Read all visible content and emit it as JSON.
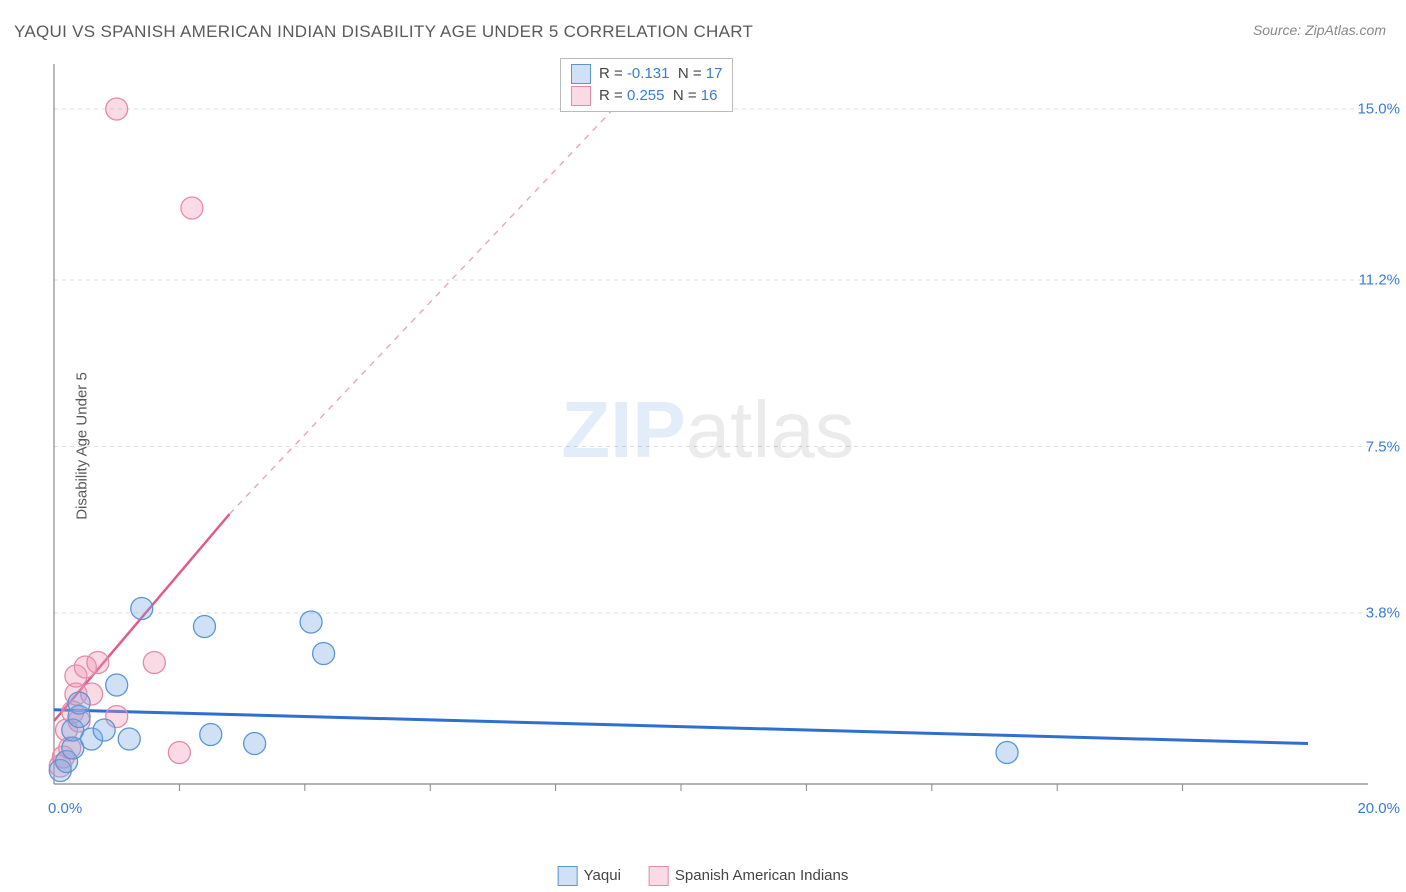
{
  "title": "YAQUI VS SPANISH AMERICAN INDIAN DISABILITY AGE UNDER 5 CORRELATION CHART",
  "source": "Source: ZipAtlas.com",
  "ylabel": "Disability Age Under 5",
  "watermark": {
    "bold": "ZIP",
    "rest": "atlas"
  },
  "chart": {
    "type": "scatter",
    "xlim": [
      0.0,
      20.0
    ],
    "ylim": [
      0.0,
      16.0
    ],
    "xlim_labels": [
      "0.0%",
      "20.0%"
    ],
    "yticks": [
      3.8,
      7.5,
      11.2,
      15.0
    ],
    "ytick_labels": [
      "3.8%",
      "7.5%",
      "11.2%",
      "15.0%"
    ],
    "xticks_minor": [
      2,
      4,
      6,
      8,
      10,
      12,
      14,
      16,
      18
    ],
    "grid_color": "#dddddd",
    "axis_color": "#888888",
    "background": "#ffffff",
    "marker_radius": 11,
    "marker_stroke_width": 1.3,
    "series": [
      {
        "name": "Yaqui",
        "fill": "rgba(120,170,230,0.35)",
        "stroke": "#5a96d6",
        "R": "-0.131",
        "N": "17",
        "trend": {
          "x1": 0.0,
          "y1": 1.65,
          "x2": 20.0,
          "y2": 0.9,
          "stroke": "#2f6fd0",
          "width": 3,
          "dash": ""
        },
        "trend_ext": {
          "x1": 0.0,
          "y1": 1.65,
          "x2": 20.0,
          "y2": 0.9,
          "stroke": "#2f6fd0"
        },
        "points": [
          [
            0.1,
            0.3
          ],
          [
            0.2,
            0.5
          ],
          [
            0.3,
            0.8
          ],
          [
            0.3,
            1.2
          ],
          [
            0.4,
            1.5
          ],
          [
            0.4,
            1.8
          ],
          [
            0.6,
            1.0
          ],
          [
            0.8,
            1.2
          ],
          [
            1.0,
            2.2
          ],
          [
            1.2,
            1.0
          ],
          [
            1.4,
            3.9
          ],
          [
            2.4,
            3.5
          ],
          [
            2.5,
            1.1
          ],
          [
            3.2,
            0.9
          ],
          [
            4.1,
            3.6
          ],
          [
            4.3,
            2.9
          ],
          [
            15.2,
            0.7
          ]
        ]
      },
      {
        "name": "Spanish American Indians",
        "fill": "rgba(240,150,180,0.35)",
        "stroke": "#e48aaa",
        "R": "0.255",
        "N": "16",
        "trend": {
          "x1": 0.0,
          "y1": 1.4,
          "x2": 2.8,
          "y2": 6.0,
          "stroke": "#e05a8a",
          "width": 2.5,
          "dash": ""
        },
        "trend_ext": {
          "x1": 2.8,
          "y1": 6.0,
          "x2": 9.6,
          "y2": 16.0,
          "stroke": "#e6a6bd"
        },
        "points": [
          [
            0.1,
            0.4
          ],
          [
            0.15,
            0.6
          ],
          [
            0.2,
            1.2
          ],
          [
            0.25,
            0.8
          ],
          [
            0.3,
            1.6
          ],
          [
            0.35,
            2.0
          ],
          [
            0.35,
            2.4
          ],
          [
            0.4,
            1.4
          ],
          [
            0.5,
            2.6
          ],
          [
            0.6,
            2.0
          ],
          [
            0.7,
            2.7
          ],
          [
            1.0,
            1.5
          ],
          [
            1.6,
            2.7
          ],
          [
            2.0,
            0.7
          ],
          [
            1.0,
            15.0
          ],
          [
            2.2,
            12.8
          ]
        ]
      }
    ],
    "legend_bottom": [
      {
        "label": "Yaqui",
        "fill": "rgba(120,170,230,0.35)",
        "stroke": "#5a96d6"
      },
      {
        "label": "Spanish American Indians",
        "fill": "rgba(240,150,180,0.35)",
        "stroke": "#e48aaa"
      }
    ]
  }
}
